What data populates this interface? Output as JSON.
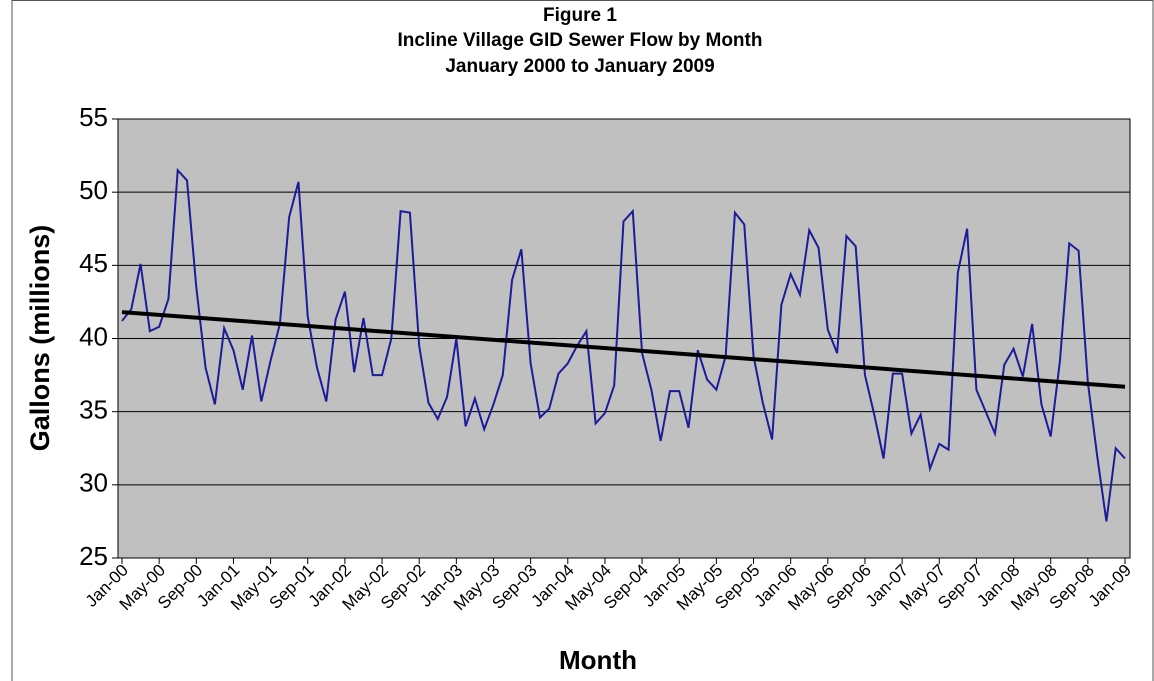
{
  "chart_data": {
    "type": "line",
    "title": [
      "Figure 1",
      "Incline Village GID Sewer Flow by Month",
      "January 2000 to January 2009"
    ],
    "x_label": "Month",
    "y_label": "Gallons (millions)",
    "categories": [
      "Jan-00",
      null,
      null,
      null,
      "May-00",
      null,
      null,
      null,
      "Sep-00",
      null,
      null,
      null,
      "Jan-01",
      null,
      null,
      null,
      "May-01",
      null,
      null,
      null,
      "Sep-01",
      null,
      null,
      null,
      "Jan-02",
      null,
      null,
      null,
      "May-02",
      null,
      null,
      null,
      "Sep-02",
      null,
      null,
      null,
      "Jan-03",
      null,
      null,
      null,
      "May-03",
      null,
      null,
      null,
      "Sep-03",
      null,
      null,
      null,
      "Jan-04",
      null,
      null,
      null,
      "May-04",
      null,
      null,
      null,
      "Sep-04",
      null,
      null,
      null,
      "Jan-05",
      null,
      null,
      null,
      "May-05",
      null,
      null,
      null,
      "Sep-05",
      null,
      null,
      null,
      "Jan-06",
      null,
      null,
      null,
      "May-06",
      null,
      null,
      null,
      "Sep-06",
      null,
      null,
      null,
      "Jan-07",
      null,
      null,
      null,
      "May-07",
      null,
      null,
      null,
      "Sep-07",
      null,
      null,
      null,
      "Jan-08",
      null,
      null,
      null,
      "May-08",
      null,
      null,
      null,
      "Sep-08",
      null,
      null,
      null,
      "Jan-09"
    ],
    "series": [
      {
        "color": "#1c1c9a",
        "values": [
          41.2,
          42.0,
          45.1,
          40.5,
          40.8,
          42.7,
          51.5,
          50.8,
          43.5,
          38.0,
          35.5,
          40.7,
          39.2,
          36.5,
          40.2,
          35.7,
          38.5,
          41.0,
          48.3,
          50.7,
          41.5,
          38.0,
          35.7,
          41.3,
          43.2,
          37.7,
          41.4,
          37.5,
          37.5,
          40.0,
          48.7,
          48.6,
          39.5,
          35.6,
          34.5,
          36.0,
          40.0,
          34.0,
          35.9,
          33.8,
          35.5,
          37.5,
          44.0,
          46.1,
          38.3,
          34.6,
          35.2,
          37.6,
          38.3,
          39.5,
          40.5,
          34.2,
          34.9,
          36.8,
          48.0,
          48.7,
          39.0,
          36.5,
          33.0,
          36.4,
          36.4,
          33.9,
          39.2,
          37.2,
          36.5,
          38.8,
          48.6,
          47.8,
          38.8,
          35.6,
          33.1,
          42.3,
          44.4,
          43.0,
          47.4,
          46.2,
          40.6,
          39.0,
          47.0,
          46.3,
          37.5,
          34.8,
          31.8,
          37.6,
          37.6,
          33.5,
          34.8,
          31.1,
          32.8,
          32.4,
          44.5,
          47.5,
          36.5,
          35.0,
          33.5,
          38.2,
          39.3,
          37.4,
          41.0,
          35.5,
          33.3,
          38.5,
          46.5,
          46.0,
          37.0,
          32.0,
          27.5,
          32.5,
          31.8
        ]
      }
    ],
    "trendline": {
      "color": "#000000",
      "values": [
        41.8,
        36.7
      ]
    },
    "ylim": [
      25,
      55
    ],
    "yticks": [
      25,
      30,
      35,
      40,
      45,
      50,
      55
    ],
    "grid": true,
    "plot_background": "#c0c0c0"
  }
}
